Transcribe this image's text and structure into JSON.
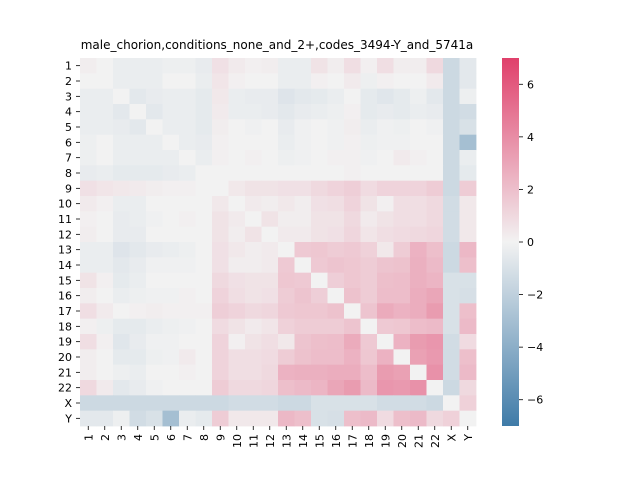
{
  "chart_data": {
    "type": "heatmap",
    "title": "male_chorion,conditions_none_and_2+,codes_3494-Y_and_5741a",
    "labels": [
      "1",
      "2",
      "3",
      "4",
      "5",
      "6",
      "7",
      "8",
      "9",
      "10",
      "11",
      "12",
      "13",
      "14",
      "15",
      "16",
      "17",
      "18",
      "19",
      "20",
      "21",
      "22",
      "X",
      "Y"
    ],
    "colorbar": {
      "vmin": -7,
      "vmax": 7,
      "ticks": [
        -6,
        -4,
        -2,
        0,
        2,
        4,
        6
      ]
    },
    "colormap": {
      "low": "#3f7ba8",
      "mid": "#f2f2f2",
      "high": "#e0406b"
    },
    "grid": false,
    "legend": "colorbar-right",
    "values": [
      [
        0.2,
        0.0,
        -0.3,
        -0.3,
        -0.3,
        -0.2,
        -0.2,
        -0.4,
        0.7,
        0.3,
        0.1,
        0.2,
        -0.3,
        -0.3,
        0.6,
        0.2,
        0.8,
        0.1,
        0.8,
        0.2,
        0.2,
        1.0,
        -1.5,
        -0.6
      ],
      [
        0.0,
        0.0,
        -0.3,
        -0.3,
        -0.3,
        0.0,
        0.0,
        -0.3,
        0.5,
        0.1,
        0.0,
        0.0,
        -0.3,
        -0.3,
        0.1,
        0.0,
        0.3,
        -0.2,
        0.1,
        0.0,
        0.0,
        0.3,
        -1.5,
        -0.6
      ],
      [
        -0.3,
        -0.3,
        0.0,
        -0.6,
        -0.4,
        -0.3,
        -0.3,
        -0.5,
        0.4,
        -0.3,
        -0.4,
        -0.4,
        -0.8,
        -0.6,
        -0.5,
        -0.3,
        0.0,
        -0.5,
        -0.7,
        -0.5,
        -0.2,
        -0.6,
        -1.5,
        -0.2
      ],
      [
        -0.3,
        -0.3,
        -0.6,
        0.0,
        -0.6,
        -0.3,
        -0.3,
        -0.5,
        0.3,
        -0.3,
        -0.3,
        -0.4,
        -0.6,
        -0.4,
        -0.3,
        -0.2,
        0.1,
        -0.5,
        -0.4,
        -0.5,
        -0.3,
        -0.4,
        -1.5,
        -1.3
      ],
      [
        -0.3,
        -0.3,
        -0.4,
        -0.6,
        0.0,
        -0.3,
        -0.3,
        -0.5,
        0.2,
        0.0,
        -0.1,
        0.0,
        -0.4,
        -0.1,
        0.0,
        -0.1,
        0.2,
        -0.3,
        -0.1,
        -0.2,
        0.0,
        -0.1,
        -1.5,
        -1.0
      ],
      [
        -0.2,
        0.0,
        -0.3,
        -0.3,
        -0.3,
        0.0,
        -0.3,
        -0.4,
        0.1,
        0.0,
        0.0,
        0.0,
        -0.3,
        -0.1,
        0.0,
        -0.1,
        0.1,
        -0.2,
        -0.1,
        -0.1,
        0.0,
        0.0,
        -1.5,
        -3.0
      ],
      [
        -0.2,
        0.0,
        -0.3,
        -0.3,
        -0.3,
        -0.3,
        0.0,
        -0.3,
        0.1,
        0.0,
        0.1,
        0.0,
        -0.2,
        -0.1,
        0.0,
        0.1,
        0.1,
        -0.1,
        0.0,
        0.3,
        0.1,
        0.0,
        -1.5,
        -0.3
      ],
      [
        -0.4,
        -0.3,
        -0.5,
        -0.5,
        -0.5,
        -0.4,
        -0.3,
        0.0,
        0.0,
        0.0,
        0.0,
        0.0,
        0.0,
        0.0,
        0.0,
        0.0,
        0.1,
        0.0,
        0.0,
        0.0,
        0.0,
        0.0,
        -1.5,
        -0.5
      ],
      [
        0.7,
        0.5,
        0.4,
        0.3,
        0.2,
        0.1,
        0.1,
        0.0,
        0.0,
        0.4,
        0.6,
        0.6,
        0.7,
        0.7,
        1.0,
        1.2,
        1.4,
        0.9,
        1.2,
        1.2,
        1.2,
        1.5,
        -1.5,
        1.5
      ],
      [
        0.3,
        0.1,
        -0.3,
        -0.3,
        0.0,
        0.0,
        0.0,
        0.0,
        0.4,
        0.0,
        0.3,
        0.2,
        0.4,
        0.2,
        0.7,
        0.8,
        1.2,
        0.6,
        0.1,
        0.8,
        0.8,
        1.0,
        -1.3,
        0.4
      ],
      [
        0.1,
        0.0,
        -0.4,
        -0.3,
        -0.1,
        0.0,
        0.1,
        0.0,
        0.6,
        0.3,
        0.0,
        0.6,
        0.2,
        0.2,
        0.6,
        0.6,
        1.0,
        0.3,
        0.6,
        0.8,
        0.8,
        1.0,
        -1.3,
        0.4
      ],
      [
        0.2,
        0.0,
        -0.4,
        -0.4,
        0.0,
        0.0,
        0.0,
        0.0,
        0.6,
        0.2,
        0.6,
        0.0,
        0.3,
        0.3,
        0.6,
        0.7,
        1.1,
        0.5,
        0.8,
        0.9,
        1.0,
        1.1,
        -1.3,
        0.4
      ],
      [
        -0.3,
        -0.3,
        -0.8,
        -0.6,
        -0.4,
        -0.3,
        -0.2,
        0.0,
        0.7,
        0.4,
        0.2,
        0.3,
        0.0,
        1.6,
        1.7,
        1.5,
        1.6,
        1.3,
        0.4,
        1.5,
        2.5,
        2.0,
        -1.5,
        2.3
      ],
      [
        -0.3,
        -0.3,
        -0.6,
        -0.4,
        -0.1,
        -0.1,
        -0.1,
        0.0,
        0.7,
        0.2,
        0.2,
        0.3,
        1.6,
        0.0,
        1.6,
        1.8,
        1.7,
        1.5,
        1.8,
        1.9,
        2.6,
        2.2,
        -1.5,
        2.0
      ],
      [
        0.6,
        0.1,
        -0.5,
        -0.3,
        0.0,
        0.0,
        0.0,
        0.0,
        1.0,
        0.7,
        0.6,
        0.6,
        1.7,
        1.6,
        0.0,
        1.4,
        1.7,
        1.5,
        2.0,
        2.1,
        2.6,
        2.4,
        -1.0,
        -1.0
      ],
      [
        0.2,
        0.0,
        -0.3,
        -0.2,
        -0.1,
        -0.1,
        0.1,
        0.0,
        1.2,
        0.8,
        0.6,
        0.7,
        1.5,
        1.8,
        1.4,
        0.0,
        1.9,
        1.5,
        2.1,
        2.1,
        2.7,
        3.0,
        -1.0,
        -1.1
      ],
      [
        0.8,
        0.3,
        0.0,
        0.1,
        0.2,
        0.1,
        0.1,
        0.1,
        1.4,
        1.2,
        1.0,
        1.1,
        1.6,
        1.7,
        1.7,
        1.9,
        0.0,
        1.8,
        2.8,
        2.5,
        2.7,
        3.4,
        -1.0,
        2.0
      ],
      [
        0.1,
        -0.2,
        -0.5,
        -0.5,
        -0.3,
        -0.2,
        -0.1,
        0.0,
        0.9,
        0.6,
        0.3,
        0.5,
        1.3,
        1.5,
        1.5,
        1.5,
        1.8,
        0.0,
        1.6,
        1.7,
        2.1,
        2.2,
        -1.0,
        2.2
      ],
      [
        0.8,
        0.1,
        -0.7,
        -0.4,
        -0.1,
        -0.1,
        0.0,
        0.0,
        1.2,
        0.1,
        0.6,
        0.8,
        0.4,
        1.8,
        2.0,
        2.1,
        2.8,
        1.6,
        0.0,
        2.5,
        3.4,
        3.6,
        -1.3,
        0.9
      ],
      [
        0.2,
        0.0,
        -0.5,
        -0.5,
        -0.2,
        -0.1,
        0.3,
        0.0,
        1.2,
        0.8,
        0.8,
        0.9,
        1.5,
        1.9,
        2.1,
        2.1,
        2.5,
        1.7,
        2.5,
        0.0,
        3.2,
        3.5,
        -1.3,
        2.0
      ],
      [
        0.2,
        0.0,
        -0.2,
        -0.3,
        0.0,
        0.0,
        0.1,
        0.0,
        1.2,
        0.8,
        0.8,
        1.0,
        2.5,
        2.6,
        2.6,
        2.7,
        2.7,
        2.1,
        3.4,
        3.2,
        0.0,
        3.8,
        -1.3,
        2.2
      ],
      [
        1.0,
        0.3,
        -0.6,
        -0.4,
        -0.1,
        0.0,
        0.0,
        0.0,
        1.5,
        1.0,
        1.0,
        1.1,
        2.0,
        2.2,
        2.4,
        3.0,
        3.4,
        2.2,
        3.6,
        3.5,
        3.8,
        0.0,
        -1.5,
        1.0
      ],
      [
        -1.5,
        -1.5,
        -1.5,
        -1.5,
        -1.5,
        -1.5,
        -1.5,
        -1.5,
        -1.5,
        -1.3,
        -1.3,
        -1.3,
        -1.5,
        -1.5,
        -1.0,
        -1.0,
        -1.0,
        -1.0,
        -1.3,
        -1.3,
        -1.3,
        -1.5,
        0.0,
        1.3
      ],
      [
        -0.6,
        -0.6,
        -0.2,
        -1.3,
        -1.0,
        -3.0,
        -0.3,
        -0.5,
        1.5,
        0.4,
        0.4,
        0.4,
        2.3,
        2.0,
        -1.0,
        -1.1,
        2.0,
        2.2,
        0.9,
        2.0,
        2.2,
        1.0,
        1.3,
        0.0
      ]
    ]
  }
}
